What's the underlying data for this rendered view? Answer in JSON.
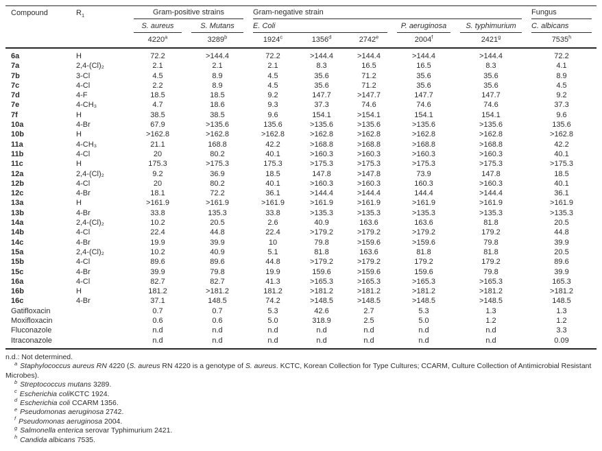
{
  "table": {
    "header": {
      "compound": "Compound",
      "r1_base": "R",
      "r1_sub": "1",
      "groups": {
        "gram_positive": "Gram-positive strains",
        "gram_negative": "Gram-negative strain",
        "fungus": "Fungus"
      },
      "species": {
        "s_aureus": "S. aureus",
        "s_mutans": "S. Mutans",
        "e_coli": "E. Coli",
        "p_aeruginosa": "P. aeruginosa",
        "s_typhimurium": "S. typhimurium",
        "c_albicans": "C. albicans"
      },
      "strains": [
        {
          "num": "4220",
          "sup": "a"
        },
        {
          "num": "3289",
          "sup": "b"
        },
        {
          "num": "1924",
          "sup": "c"
        },
        {
          "num": "1356",
          "sup": "d"
        },
        {
          "num": "2742",
          "sup": "e"
        },
        {
          "num": "2004",
          "sup": "f"
        },
        {
          "num": "2421",
          "sup": "g"
        },
        {
          "num": "7535",
          "sup": "h"
        }
      ]
    },
    "rows": [
      {
        "compound": "6a",
        "r1": "H",
        "bold": true,
        "values": [
          "72.2",
          ">144.4",
          "72.2",
          ">144.4",
          ">144.4",
          ">144.4",
          ">144.4",
          "72.2"
        ]
      },
      {
        "compound": "7a",
        "r1": "2,4-(Cl)₂",
        "bold": true,
        "values": [
          "2.1",
          "2.1",
          "2.1",
          "8.3",
          "16.5",
          "16.5",
          "8.3",
          "4.1"
        ]
      },
      {
        "compound": "7b",
        "r1": "3-Cl",
        "bold": true,
        "values": [
          "4.5",
          "8.9",
          "4.5",
          "35.6",
          "71.2",
          "35.6",
          "35.6",
          "8.9"
        ]
      },
      {
        "compound": "7c",
        "r1": "4-Cl",
        "bold": true,
        "values": [
          "2.2",
          "8.9",
          "4.5",
          "35.6",
          "71.2",
          "35.6",
          "35.6",
          "4.5"
        ]
      },
      {
        "compound": "7d",
        "r1": "4-F",
        "bold": true,
        "values": [
          "18.5",
          "18.5",
          "9.2",
          "147.7",
          ">147.7",
          "147.7",
          "147.7",
          "9.2"
        ]
      },
      {
        "compound": "7e",
        "r1": "4-CH₃",
        "bold": true,
        "values": [
          "4.7",
          "18.6",
          "9.3",
          "37.3",
          "74.6",
          "74.6",
          "74.6",
          "37.3"
        ]
      },
      {
        "compound": "7f",
        "r1": "H",
        "bold": true,
        "values": [
          "38.5",
          "38.5",
          "9.6",
          "154.1",
          ">154.1",
          "154.1",
          "154.1",
          "9.6"
        ]
      },
      {
        "compound": "10a",
        "r1": "4-Br",
        "bold": true,
        "values": [
          "67.9",
          ">135.6",
          "135.6",
          ">135.6",
          ">135.6",
          ">135.6",
          ">135.6",
          "135.6"
        ]
      },
      {
        "compound": "10b",
        "r1": "H",
        "bold": true,
        "values": [
          ">162.8",
          ">162.8",
          ">162.8",
          ">162.8",
          ">162.8",
          ">162.8",
          ">162.8",
          ">162.8"
        ]
      },
      {
        "compound": "11a",
        "r1": "4-CH₃",
        "bold": true,
        "values": [
          "21.1",
          "168.8",
          "42.2",
          ">168.8",
          ">168.8",
          ">168.8",
          ">168.8",
          "42.2"
        ]
      },
      {
        "compound": "11b",
        "r1": "4-Cl",
        "bold": true,
        "values": [
          "20",
          "80.2",
          "40.1",
          ">160.3",
          ">160.3",
          ">160.3",
          ">160.3",
          "40.1"
        ]
      },
      {
        "compound": "11c",
        "r1": "H",
        "bold": true,
        "values": [
          "175.3",
          ">175.3",
          "175.3",
          ">175.3",
          ">175.3",
          ">175.3",
          ">175.3",
          ">175.3"
        ]
      },
      {
        "compound": "12a",
        "r1": "2,4-(Cl)₂",
        "bold": true,
        "values": [
          "9.2",
          "36.9",
          "18.5",
          "147.8",
          ">147.8",
          "73.9",
          "147.8",
          "18.5"
        ]
      },
      {
        "compound": "12b",
        "r1": "4-Cl",
        "bold": true,
        "values": [
          "20",
          "80.2",
          "40.1",
          ">160.3",
          ">160.3",
          "160.3",
          ">160.3",
          "40.1"
        ]
      },
      {
        "compound": "12c",
        "r1": "4-Br",
        "bold": true,
        "values": [
          "18.1",
          "72.2",
          "36.1",
          ">144.4",
          ">144.4",
          "144.4",
          ">144.4",
          "36.1"
        ]
      },
      {
        "compound": "13a",
        "r1": "H",
        "bold": true,
        "values": [
          ">161.9",
          ">161.9",
          ">161.9",
          ">161.9",
          ">161.9",
          ">161.9",
          ">161.9",
          ">161.9"
        ]
      },
      {
        "compound": "13b",
        "r1": "4-Br",
        "bold": true,
        "values": [
          "33.8",
          "135.3",
          "33.8",
          ">135.3",
          ">135.3",
          ">135.3",
          ">135.3",
          ">135.3"
        ]
      },
      {
        "compound": "14a",
        "r1": "2,4-(Cl)₂",
        "bold": true,
        "values": [
          "10.2",
          "20.5",
          "2.6",
          "40.9",
          "163.6",
          "163.6",
          "81.8",
          "20.5"
        ]
      },
      {
        "compound": "14b",
        "r1": "4-Cl",
        "bold": true,
        "values": [
          "22.4",
          "44.8",
          "22.4",
          ">179.2",
          ">179.2",
          ">179.2",
          "179.2",
          "44.8"
        ]
      },
      {
        "compound": "14c",
        "r1": "4-Br",
        "bold": true,
        "values": [
          "19.9",
          "39.9",
          "10",
          "79.8",
          ">159.6",
          ">159.6",
          "79.8",
          "39.9"
        ]
      },
      {
        "compound": "15a",
        "r1": "2,4-(Cl)₂",
        "bold": true,
        "values": [
          "10.2",
          "40.9",
          "5.1",
          "81.8",
          "163.6",
          "81.8",
          "81.8",
          "20.5"
        ]
      },
      {
        "compound": "15b",
        "r1": "4-Cl",
        "bold": true,
        "values": [
          "89.6",
          "89.6",
          "44.8",
          ">179.2",
          ">179.2",
          "179.2",
          "179.2",
          "89.6"
        ]
      },
      {
        "compound": "15c",
        "r1": "4-Br",
        "bold": true,
        "values": [
          "39.9",
          "79.8",
          "19.9",
          "159.6",
          ">159.6",
          "159.6",
          "79.8",
          "39.9"
        ]
      },
      {
        "compound": "16a",
        "r1": "4-Cl",
        "bold": true,
        "values": [
          "82.7",
          "82.7",
          "41.3",
          ">165.3",
          ">165.3",
          ">165.3",
          ">165.3",
          "165.3"
        ]
      },
      {
        "compound": "16b",
        "r1": "H",
        "bold": true,
        "values": [
          "181.2",
          ">181.2",
          "181.2",
          ">181.2",
          ">181.2",
          ">181.2",
          ">181.2",
          ">181.2"
        ]
      },
      {
        "compound": "16c",
        "r1": "4-Br",
        "bold": true,
        "values": [
          "37.1",
          "148.5",
          "74.2",
          ">148.5",
          ">148.5",
          ">148.5",
          ">148.5",
          "148.5"
        ]
      },
      {
        "compound": "Gatifloxacin",
        "r1": "",
        "bold": false,
        "values": [
          "0.7",
          "0.7",
          "5.3",
          "42.6",
          "2.7",
          "5.3",
          "1.3",
          "1.3"
        ]
      },
      {
        "compound": "Moxifloxacin",
        "r1": "",
        "bold": false,
        "values": [
          "0.6",
          "0.6",
          "5.0",
          "318.9",
          "2.5",
          "5.0",
          "1.2",
          "1.2"
        ]
      },
      {
        "compound": "Fluconazole",
        "r1": "",
        "bold": false,
        "values": [
          "n.d",
          "n.d",
          "n.d",
          "n.d",
          "n.d",
          "n.d",
          "n.d",
          "3.3"
        ]
      },
      {
        "compound": "Itraconazole",
        "r1": "",
        "bold": false,
        "values": [
          "n.d",
          "n.d",
          "n.d",
          "n.d",
          "n.d",
          "n.d",
          "n.d",
          "0.09"
        ]
      }
    ],
    "footnotes": {
      "nd": "n.d.: Not determined.",
      "items": [
        {
          "marker": "a",
          "segments": [
            {
              "t": "i",
              "s": "Staphylococcus aureus RN"
            },
            {
              "t": "r",
              "s": " 4220 ("
            },
            {
              "t": "i",
              "s": "S. aureus"
            },
            {
              "t": "r",
              "s": " RN 4220 is a genotype of "
            },
            {
              "t": "i",
              "s": "S. aureus"
            },
            {
              "t": "r",
              "s": ". KCTC, Korean Collection for Type Cultures; CCARM, Culture Collection of Antimicrobial Resistant Microbes)."
            }
          ]
        },
        {
          "marker": "b",
          "segments": [
            {
              "t": "i",
              "s": "Streptococcus mutans"
            },
            {
              "t": "r",
              "s": " 3289."
            }
          ]
        },
        {
          "marker": "c",
          "segments": [
            {
              "t": "i",
              "s": "Escherichia coli"
            },
            {
              "t": "r",
              "s": "KCTC 1924."
            }
          ]
        },
        {
          "marker": "d",
          "segments": [
            {
              "t": "i",
              "s": "Escherichia coli"
            },
            {
              "t": "r",
              "s": " CCARM 1356."
            }
          ]
        },
        {
          "marker": "e",
          "segments": [
            {
              "t": "i",
              "s": "Pseudomonas aeruginosa"
            },
            {
              "t": "r",
              "s": " 2742."
            }
          ]
        },
        {
          "marker": "f",
          "segments": [
            {
              "t": "i",
              "s": "Pseudomonas aeruginosa"
            },
            {
              "t": "r",
              "s": " 2004."
            }
          ]
        },
        {
          "marker": "g",
          "segments": [
            {
              "t": "i",
              "s": "Salmonella enterica"
            },
            {
              "t": "r",
              "s": " serovar Typhimurium 2421."
            }
          ]
        },
        {
          "marker": "h",
          "segments": [
            {
              "t": "i",
              "s": "Candida albicans"
            },
            {
              "t": "r",
              "s": " 7535."
            }
          ]
        }
      ]
    }
  }
}
